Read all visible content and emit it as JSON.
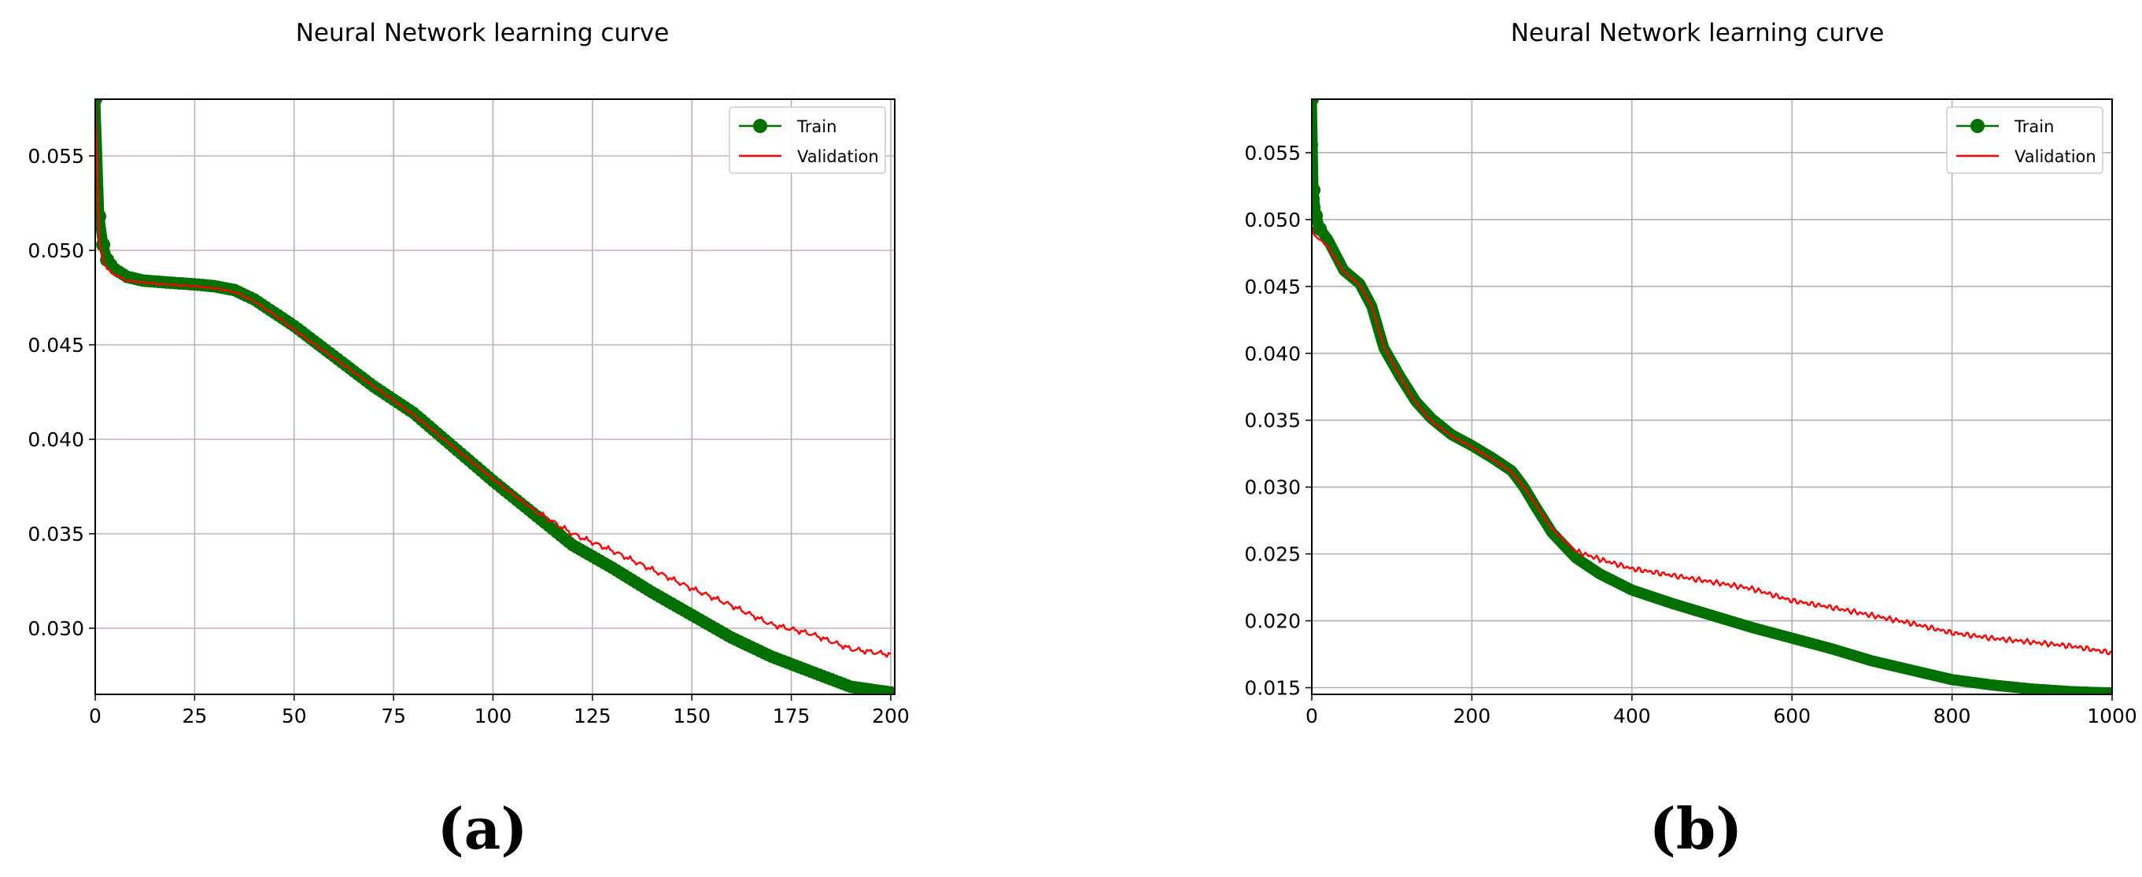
{
  "figure": {
    "caption_a": "(a)",
    "caption_b": "(b)"
  },
  "chart_data": [
    {
      "type": "line",
      "title": "Neural Network learning curve",
      "xlabel": "",
      "ylabel": "",
      "xlim": [
        0,
        201
      ],
      "ylim": [
        0.0265,
        0.058
      ],
      "xticks": [
        0,
        25,
        50,
        75,
        100,
        125,
        150,
        175,
        200
      ],
      "yticks": [
        0.03,
        0.035,
        0.04,
        0.045,
        0.05,
        0.055
      ],
      "ytick_labels": [
        "0.030",
        "0.035",
        "0.040",
        "0.045",
        "0.050",
        "0.055"
      ],
      "grid": true,
      "legend_position": "upper right",
      "series": [
        {
          "name": "Train",
          "color": "#007000",
          "style": "line+markers",
          "x": [
            0,
            1,
            2,
            3,
            5,
            8,
            12,
            18,
            25,
            30,
            35,
            40,
            45,
            50,
            60,
            70,
            80,
            90,
            100,
            110,
            120,
            130,
            140,
            150,
            160,
            170,
            180,
            190,
            200
          ],
          "y": [
            0.058,
            0.0518,
            0.0503,
            0.0495,
            0.049,
            0.0486,
            0.0484,
            0.0483,
            0.0482,
            0.0481,
            0.0479,
            0.0474,
            0.0467,
            0.046,
            0.0444,
            0.0428,
            0.0414,
            0.0396,
            0.0378,
            0.0361,
            0.0344,
            0.0332,
            0.0319,
            0.0307,
            0.0295,
            0.0285,
            0.0277,
            0.0269,
            0.0266
          ]
        },
        {
          "name": "Validation",
          "color": "#ff0000",
          "style": "line",
          "x": [
            0,
            1,
            2,
            3,
            5,
            8,
            12,
            18,
            25,
            30,
            35,
            40,
            45,
            50,
            60,
            70,
            80,
            90,
            100,
            110,
            120,
            130,
            140,
            150,
            160,
            170,
            180,
            190,
            200
          ],
          "y": [
            0.058,
            0.0505,
            0.0495,
            0.049,
            0.0487,
            0.0484,
            0.0483,
            0.0482,
            0.0481,
            0.048,
            0.0478,
            0.0473,
            0.0466,
            0.0458,
            0.0443,
            0.0428,
            0.0413,
            0.0396,
            0.0379,
            0.0363,
            0.035,
            0.0341,
            0.0331,
            0.0321,
            0.0312,
            0.0302,
            0.0297,
            0.0289,
            0.0286
          ]
        }
      ]
    },
    {
      "type": "line",
      "title": "Neural Network learning curve",
      "xlabel": "",
      "ylabel": "",
      "xlim": [
        0,
        1000
      ],
      "ylim": [
        0.0145,
        0.059
      ],
      "xticks": [
        0,
        200,
        400,
        600,
        800,
        1000
      ],
      "yticks": [
        0.015,
        0.02,
        0.025,
        0.03,
        0.035,
        0.04,
        0.045,
        0.05,
        0.055
      ],
      "ytick_labels": [
        "0.015",
        "0.020",
        "0.025",
        "0.030",
        "0.035",
        "0.040",
        "0.045",
        "0.050",
        "0.055"
      ],
      "grid": true,
      "legend_position": "upper right",
      "series": [
        {
          "name": "Train",
          "color": "#007000",
          "style": "line+markers",
          "x": [
            0,
            2,
            5,
            10,
            20,
            40,
            60,
            75,
            90,
            110,
            130,
            150,
            175,
            200,
            225,
            250,
            265,
            280,
            300,
            330,
            360,
            400,
            450,
            500,
            550,
            600,
            650,
            700,
            750,
            800,
            850,
            900,
            950,
            1000
          ],
          "y": [
            0.059,
            0.0522,
            0.0503,
            0.0493,
            0.0485,
            0.0462,
            0.0452,
            0.0435,
            0.0404,
            0.0383,
            0.0364,
            0.0351,
            0.0339,
            0.0331,
            0.0322,
            0.0312,
            0.03,
            0.0285,
            0.0266,
            0.0247,
            0.0235,
            0.0223,
            0.0213,
            0.0204,
            0.0195,
            0.0187,
            0.0179,
            0.017,
            0.0163,
            0.0156,
            0.0152,
            0.0149,
            0.0147,
            0.0146
          ]
        },
        {
          "name": "Validation",
          "color": "#ff0000",
          "style": "line",
          "x": [
            0,
            2,
            5,
            10,
            20,
            40,
            60,
            75,
            90,
            110,
            130,
            150,
            175,
            200,
            225,
            250,
            265,
            280,
            300,
            330,
            360,
            400,
            450,
            500,
            550,
            600,
            650,
            700,
            750,
            800,
            850,
            900,
            950,
            1000
          ],
          "y": [
            0.0495,
            0.049,
            0.0487,
            0.0485,
            0.048,
            0.0461,
            0.0451,
            0.0435,
            0.0405,
            0.0383,
            0.0363,
            0.0349,
            0.0338,
            0.033,
            0.0321,
            0.0311,
            0.03,
            0.0287,
            0.0269,
            0.0252,
            0.0246,
            0.0239,
            0.0234,
            0.0229,
            0.0224,
            0.0215,
            0.021,
            0.0204,
            0.0198,
            0.0191,
            0.0187,
            0.0184,
            0.0181,
            0.0176
          ]
        }
      ]
    }
  ]
}
